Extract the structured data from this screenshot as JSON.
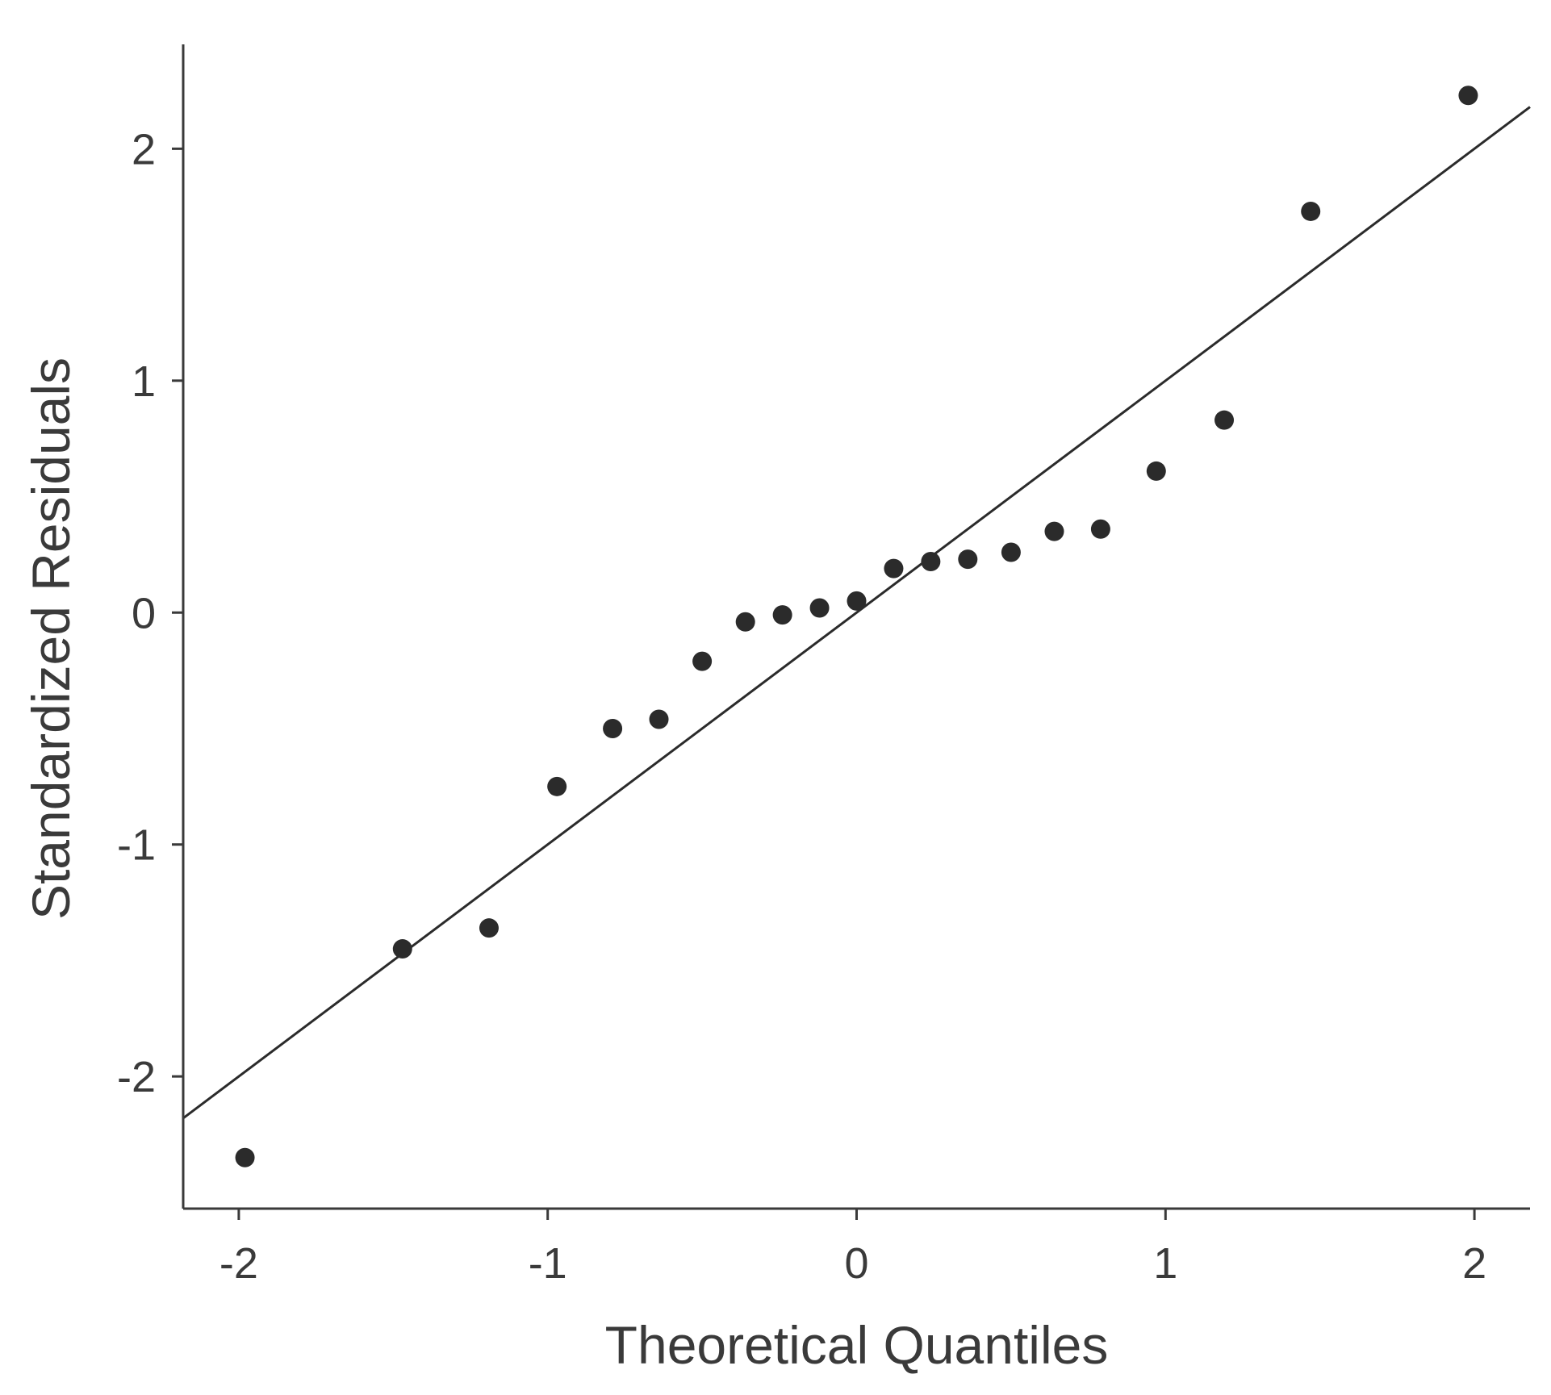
{
  "chart_data": {
    "type": "scatter",
    "xlabel": "Theoretical Quantiles",
    "ylabel": "Standardized Residuals",
    "xlim": [
      -2.18,
      2.18
    ],
    "ylim": [
      -2.57,
      2.45
    ],
    "xticks": [
      -2,
      -1,
      0,
      1,
      2
    ],
    "yticks": [
      -2,
      -1,
      0,
      1,
      2
    ],
    "xtick_labels": [
      "-2",
      "-1",
      "0",
      "1",
      "2"
    ],
    "ytick_labels": [
      "-2",
      "-1",
      "0",
      "1",
      "2"
    ],
    "grid": false,
    "colors": {
      "points": "#2b2b2b",
      "line": "#2b2b2b",
      "axis": "#3a3a3a",
      "text": "#3a3a3a"
    },
    "reference_line": {
      "x": [
        -2.18,
        2.18
      ],
      "y": [
        -2.18,
        2.18
      ]
    },
    "series": [
      {
        "x": [
          -1.98,
          -1.47,
          -1.19,
          -0.97,
          -0.79,
          -0.64,
          -0.5,
          -0.36,
          -0.24,
          -0.12,
          0.0,
          0.12,
          0.24,
          0.36,
          0.5,
          0.64,
          0.79,
          0.97,
          1.19,
          1.47,
          1.98
        ],
        "y": [
          -2.35,
          -1.45,
          -1.36,
          -0.75,
          -0.5,
          -0.46,
          -0.21,
          -0.04,
          -0.01,
          0.02,
          0.05,
          0.19,
          0.22,
          0.23,
          0.26,
          0.35,
          0.36,
          0.61,
          0.83,
          1.73,
          2.23
        ]
      }
    ]
  }
}
